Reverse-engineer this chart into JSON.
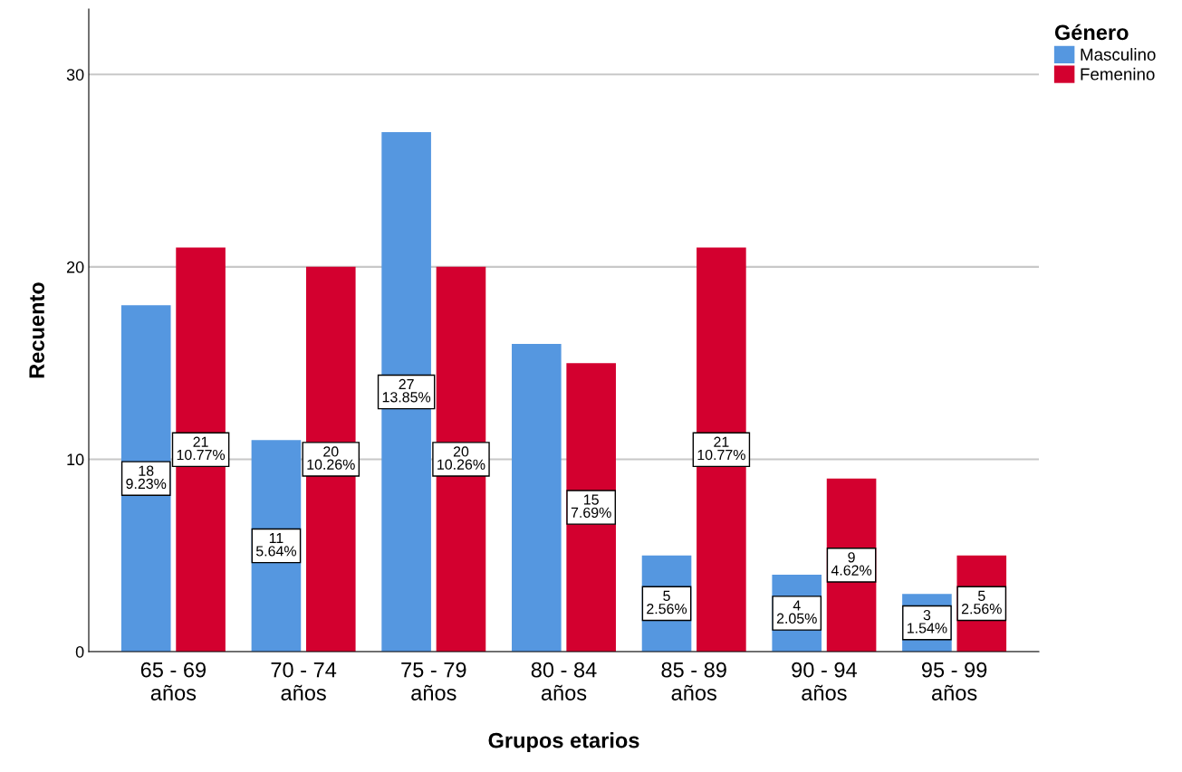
{
  "chart_data": {
    "type": "bar",
    "xlabel": "Grupos etarios",
    "ylabel": "Recuento",
    "legend_title": "Género",
    "categories": [
      "65 - 69\naños",
      "70 - 74\naños",
      "75 - 79\naños",
      "80 - 84\naños",
      "85 - 89\naños",
      "90 - 94\naños",
      "95 - 99\naños"
    ],
    "series": [
      {
        "name": "Masculino",
        "color": "#5597e0",
        "values": [
          18,
          11,
          27,
          16,
          5,
          4,
          3
        ],
        "value_labels": [
          "18\n9.23%",
          "11\n5.64%",
          "27\n13.85%",
          null,
          "5\n2.56%",
          "4\n2.05%",
          "3\n1.54%"
        ]
      },
      {
        "name": "Femenino",
        "color": "#d3002f",
        "values": [
          21,
          20,
          20,
          15,
          21,
          9,
          5
        ],
        "value_labels": [
          "21\n10.77%",
          "20\n10.26%",
          "20\n10.26%",
          "15\n7.69%",
          "21\n10.77%",
          "9\n4.62%",
          "5\n2.56%"
        ]
      }
    ],
    "ylim": [
      0,
      33.4
    ],
    "yticks": [
      0,
      10,
      20,
      30
    ],
    "grid": "y",
    "legend": "top right"
  }
}
